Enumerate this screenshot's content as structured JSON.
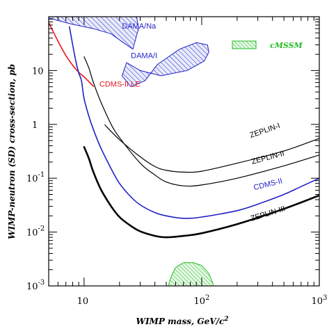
{
  "chart_data": {
    "type": "line",
    "title": "",
    "xlabel_main": "WIMP mass, GeV/c",
    "xlabel_sup": "2",
    "ylabel": "WIMP-neutron (SD) cross-section, pb",
    "xscale": "log",
    "yscale": "log",
    "xlim": [
      5,
      1000
    ],
    "ylim": [
      0.001,
      100
    ],
    "grid": false,
    "x_ticks": [
      {
        "value": 10,
        "base": "10",
        "exp": ""
      },
      {
        "value": 100,
        "base": "10",
        "exp": "2"
      },
      {
        "value": 1000,
        "base": "10",
        "exp": "3"
      }
    ],
    "y_ticks": [
      {
        "value": 0.001,
        "base": "10",
        "exp": "-3"
      },
      {
        "value": 0.01,
        "base": "10",
        "exp": "-2"
      },
      {
        "value": 0.1,
        "base": "10",
        "exp": "-1"
      },
      {
        "value": 1,
        "base": "1",
        "exp": ""
      },
      {
        "value": 10,
        "base": "10",
        "exp": ""
      }
    ],
    "series": [
      {
        "name": "CDMS-II LE",
        "color": "#e8141e",
        "width": 1.6,
        "label_pos": [
          13.5,
          5.0
        ],
        "points": [
          [
            5.0,
            78
          ],
          [
            6.0,
            35
          ],
          [
            7.0,
            19
          ],
          [
            8.0,
            12.5
          ],
          [
            9.0,
            9.3
          ],
          [
            10.0,
            7.6
          ],
          [
            11.0,
            6.2
          ],
          [
            12.0,
            5.1
          ]
        ]
      },
      {
        "name": "ZEPLIN-I",
        "color": "#000000",
        "width": 1.2,
        "label_pos": [
          350,
          0.7
        ],
        "points": [
          [
            15,
            0.98
          ],
          [
            20,
            0.52
          ],
          [
            30,
            0.25
          ],
          [
            40,
            0.165
          ],
          [
            50,
            0.14
          ],
          [
            70,
            0.13
          ],
          [
            100,
            0.135
          ],
          [
            200,
            0.19
          ],
          [
            500,
            0.32
          ],
          [
            1000,
            0.55
          ]
        ]
      },
      {
        "name": "ZEPLIN-II",
        "color": "#000000",
        "width": 1.2,
        "label_pos": [
          370,
          0.22
        ],
        "points": [
          [
            10,
            18
          ],
          [
            11,
            11
          ],
          [
            12,
            6
          ],
          [
            14,
            2.5
          ],
          [
            17,
            1.0
          ],
          [
            20,
            0.57
          ],
          [
            30,
            0.19
          ],
          [
            40,
            0.115
          ],
          [
            50,
            0.085
          ],
          [
            70,
            0.072
          ],
          [
            100,
            0.075
          ],
          [
            200,
            0.1
          ],
          [
            500,
            0.17
          ],
          [
            1000,
            0.27
          ]
        ]
      },
      {
        "name": "CDMS-II",
        "color": "#1f1fc8",
        "width": 1.6,
        "label_pos": [
          370,
          0.07
        ],
        "points": [
          [
            7.5,
            65
          ],
          [
            8,
            30
          ],
          [
            8.5,
            15
          ],
          [
            9,
            9
          ],
          [
            9.5,
            6.5
          ],
          [
            10,
            3.0
          ],
          [
            11,
            1.4
          ],
          [
            12,
            0.8
          ],
          [
            14,
            0.35
          ],
          [
            17,
            0.15
          ],
          [
            20,
            0.08
          ],
          [
            25,
            0.045
          ],
          [
            30,
            0.032
          ],
          [
            40,
            0.023
          ],
          [
            50,
            0.02
          ],
          [
            70,
            0.018
          ],
          [
            100,
            0.019
          ],
          [
            200,
            0.025
          ],
          [
            300,
            0.033
          ],
          [
            500,
            0.05
          ],
          [
            700,
            0.07
          ],
          [
            1000,
            0.1
          ]
        ]
      },
      {
        "name": "ZEPLIN-III",
        "color": "#000000",
        "width": 2.6,
        "label_pos": [
          370,
          0.02
        ],
        "points": [
          [
            10,
            0.38
          ],
          [
            11,
            0.23
          ],
          [
            12,
            0.13
          ],
          [
            14,
            0.06
          ],
          [
            17,
            0.03
          ],
          [
            20,
            0.019
          ],
          [
            25,
            0.013
          ],
          [
            30,
            0.0103
          ],
          [
            40,
            0.0085
          ],
          [
            50,
            0.008
          ],
          [
            70,
            0.0085
          ],
          [
            100,
            0.0095
          ],
          [
            200,
            0.014
          ],
          [
            500,
            0.027
          ],
          [
            1000,
            0.048
          ]
        ]
      }
    ],
    "regions": [
      {
        "name": "DAMA/Na",
        "color": "#1f1fc8",
        "fill": "#b9c2ea",
        "label_pos": [
          21,
          60
        ],
        "points": [
          [
            5.0,
            100
          ],
          [
            28,
            100
          ],
          [
            29,
            60
          ],
          [
            26,
            25
          ],
          [
            22,
            32
          ],
          [
            17,
            48
          ],
          [
            12,
            60
          ],
          [
            8,
            72
          ],
          [
            6,
            85
          ],
          [
            5.0,
            95
          ]
        ]
      },
      {
        "name": "DAMA/I",
        "color": "#1f1fc8",
        "fill": "#b9c2ea",
        "label_pos": [
          25,
          17
        ],
        "points": [
          [
            23,
            14
          ],
          [
            30,
            10
          ],
          [
            45,
            8
          ],
          [
            75,
            10
          ],
          [
            105,
            15
          ],
          [
            115,
            22
          ],
          [
            112,
            30
          ],
          [
            90,
            33
          ],
          [
            65,
            25
          ],
          [
            42,
            13
          ],
          [
            33,
            6.5
          ],
          [
            25,
            5.0
          ],
          [
            21,
            8
          ],
          [
            23,
            14
          ]
        ]
      },
      {
        "name": "",
        "color": "#22bb22",
        "fill": "#b8ecb8",
        "label_pos": null,
        "points": [
          [
            52,
            0.001
          ],
          [
            55,
            0.0015
          ],
          [
            60,
            0.0022
          ],
          [
            70,
            0.0027
          ],
          [
            85,
            0.0027
          ],
          [
            100,
            0.0024
          ],
          [
            115,
            0.0017
          ],
          [
            125,
            0.0011
          ],
          [
            125,
            0.001
          ]
        ]
      }
    ],
    "legend": {
      "position": "top-right",
      "entries": [
        {
          "label": "cMSSM",
          "color": "#22bb22",
          "fill": "#b8ecb8"
        }
      ]
    }
  }
}
